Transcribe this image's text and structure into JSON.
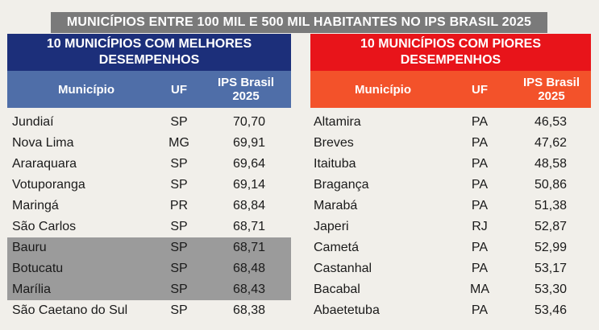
{
  "title": "MUNICÍPIOS ENTRE 100 MIL E 500 MIL HABITANTES NO IPS BRASIL 2025",
  "left": {
    "heading_line1": "10 MUNICÍPIOS COM MELHORES",
    "heading_line2": "DESEMPENHOS",
    "columns": {
      "municipio": "Município",
      "uf": "UF",
      "ips_line1": "IPS Brasil",
      "ips_line2": "2025"
    },
    "rows": [
      {
        "municipio": "Jundiaí",
        "uf": "SP",
        "ips": "70,70",
        "highlight": false
      },
      {
        "municipio": "Nova Lima",
        "uf": "MG",
        "ips": "69,91",
        "highlight": false
      },
      {
        "municipio": "Araraquara",
        "uf": "SP",
        "ips": "69,64",
        "highlight": false
      },
      {
        "municipio": "Votuporanga",
        "uf": "SP",
        "ips": "69,14",
        "highlight": false
      },
      {
        "municipio": "Maringá",
        "uf": "PR",
        "ips": "68,84",
        "highlight": false
      },
      {
        "municipio": "São Carlos",
        "uf": "SP",
        "ips": "68,71",
        "highlight": false
      },
      {
        "municipio": "Bauru",
        "uf": "SP",
        "ips": "68,71",
        "highlight": true
      },
      {
        "municipio": "Botucatu",
        "uf": "SP",
        "ips": "68,48",
        "highlight": true
      },
      {
        "municipio": "Marília",
        "uf": "SP",
        "ips": "68,43",
        "highlight": true
      },
      {
        "municipio": "São Caetano do Sul",
        "uf": "SP",
        "ips": "68,38",
        "highlight": false
      }
    ]
  },
  "right": {
    "heading_line1": "10 MUNICÍPIOS COM PIORES",
    "heading_line2": "DESEMPENHOS",
    "columns": {
      "municipio": "Município",
      "uf": "UF",
      "ips_line1": "IPS Brasil",
      "ips_line2": "2025"
    },
    "rows": [
      {
        "municipio": "Altamira",
        "uf": "PA",
        "ips": "46,53"
      },
      {
        "municipio": "Breves",
        "uf": "PA",
        "ips": "47,62"
      },
      {
        "municipio": "Itaituba",
        "uf": "PA",
        "ips": "48,58"
      },
      {
        "municipio": "Bragança",
        "uf": "PA",
        "ips": "50,86"
      },
      {
        "municipio": "Marabá",
        "uf": "PA",
        "ips": "51,38"
      },
      {
        "municipio": "Japeri",
        "uf": "RJ",
        "ips": "52,87"
      },
      {
        "municipio": "Cametá",
        "uf": "PA",
        "ips": "52,99"
      },
      {
        "municipio": "Castanhal",
        "uf": "PA",
        "ips": "53,17"
      },
      {
        "municipio": "Bacabal",
        "uf": "MA",
        "ips": "53,30"
      },
      {
        "municipio": "Abaetetuba",
        "uf": "PA",
        "ips": "53,46"
      }
    ]
  },
  "colors": {
    "best_header": "#1c2f7a",
    "best_subheader": "#4f6ea8",
    "worst_header": "#e8141a",
    "worst_subheader": "#f3522a",
    "highlight_row": "#9b9b9b",
    "title_bar": "#7a7a7a"
  }
}
